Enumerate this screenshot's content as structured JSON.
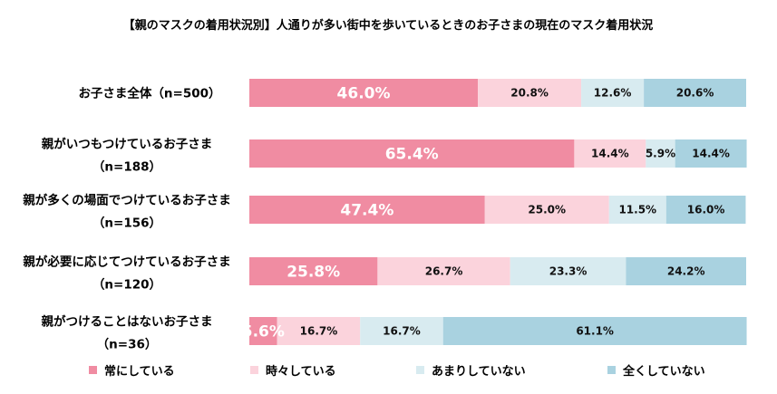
{
  "chart_data": {
    "type": "bar",
    "orientation": "horizontal-stacked-100",
    "title": "【親のマスクの着用状況別】人通りが多い街中を歩いているときのお子さまの現在のマスク着用状況",
    "categories": [
      [
        "お子さま全体（n=500）"
      ],
      [
        "親がいつもつけているお子さま",
        "（n=188）"
      ],
      [
        "親が多くの場面でつけているお子さま",
        "（n=156）"
      ],
      [
        "親が必要に応じてつけているお子さま",
        "（n=120）"
      ],
      [
        "親がつけることはないお子さま",
        "（n=36）"
      ]
    ],
    "series": [
      {
        "name": "常にしている",
        "color": "#f08ca2",
        "values": [
          46.0,
          65.4,
          47.4,
          25.8,
          5.6
        ]
      },
      {
        "name": "時々している",
        "color": "#fbd3dc",
        "values": [
          20.8,
          14.4,
          25.0,
          26.7,
          16.7
        ]
      },
      {
        "name": "あまりしていない",
        "color": "#d8ebf0",
        "values": [
          12.6,
          5.9,
          11.5,
          23.3,
          16.7
        ]
      },
      {
        "name": "全くしていない",
        "color": "#a9d2e0",
        "values": [
          20.6,
          14.4,
          16.0,
          24.2,
          61.1
        ]
      }
    ],
    "value_suffix": "%",
    "xlim": [
      0,
      100
    ],
    "legend_position": "bottom"
  }
}
